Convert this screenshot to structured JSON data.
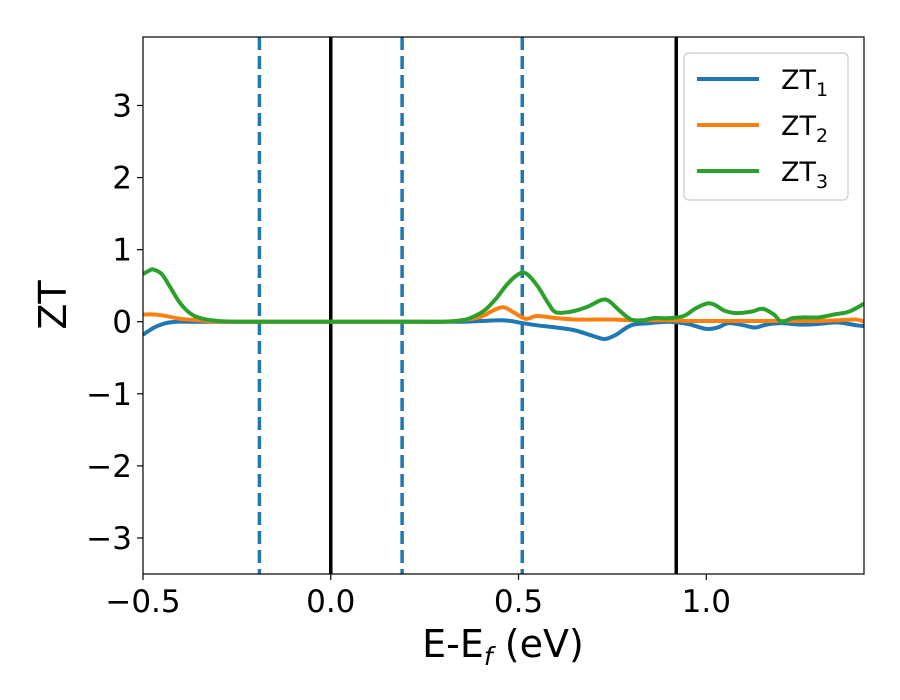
{
  "chart_data": {
    "type": "line",
    "xlabel": "E-E",
    "xlabel_sub": "f",
    "xlabel_unit": " (eV)",
    "ylabel": "ZT",
    "xlim": [
      -0.5,
      1.42
    ],
    "ylim": [
      -3.5,
      3.95
    ],
    "xticks": [
      -0.5,
      0.0,
      0.5,
      1.0
    ],
    "xtick_labels": [
      "−0.5",
      "0.0",
      "0.5",
      "1.0"
    ],
    "yticks": [
      -3,
      -2,
      -1,
      0,
      1,
      2,
      3
    ],
    "ytick_labels": [
      "−3",
      "−2",
      "−1",
      "0",
      "1",
      "2",
      "3"
    ],
    "grid": false,
    "legend_position": "top-right",
    "vlines_solid": [
      0.0,
      0.92
    ],
    "vlines_dashed": [
      -0.19,
      0.19,
      0.51
    ],
    "vline_solid_color": "#000000",
    "vline_dashed_color": "#1f77b4",
    "series": [
      {
        "name": "ZT",
        "sub": "1",
        "color": "#1f77b4",
        "x": [
          -0.5,
          -0.47,
          -0.44,
          -0.41,
          -0.38,
          -0.3,
          -0.2,
          0.0,
          0.2,
          0.35,
          0.4,
          0.45,
          0.48,
          0.5,
          0.55,
          0.6,
          0.65,
          0.7,
          0.73,
          0.76,
          0.8,
          0.85,
          0.9,
          0.95,
          1.0,
          1.03,
          1.06,
          1.1,
          1.13,
          1.16,
          1.2,
          1.25,
          1.3,
          1.35,
          1.4,
          1.42
        ],
        "y": [
          -0.18,
          -0.08,
          -0.02,
          0.0,
          0.0,
          0.0,
          0.0,
          0.0,
          0.0,
          0.0,
          0.01,
          0.02,
          0.01,
          -0.01,
          -0.05,
          -0.08,
          -0.12,
          -0.2,
          -0.24,
          -0.18,
          -0.05,
          -0.02,
          0.0,
          -0.03,
          -0.1,
          -0.08,
          -0.02,
          -0.05,
          -0.08,
          -0.04,
          -0.02,
          -0.04,
          -0.03,
          -0.01,
          -0.05,
          -0.06
        ]
      },
      {
        "name": "ZT",
        "sub": "2",
        "color": "#ff7f0e",
        "x": [
          -0.5,
          -0.47,
          -0.44,
          -0.4,
          -0.35,
          -0.3,
          -0.2,
          0.0,
          0.2,
          0.3,
          0.35,
          0.4,
          0.43,
          0.46,
          0.49,
          0.52,
          0.55,
          0.6,
          0.65,
          0.7,
          0.75,
          0.8,
          0.85,
          0.9,
          0.95,
          1.0,
          1.1,
          1.2,
          1.3,
          1.35,
          1.4,
          1.42
        ],
        "y": [
          0.1,
          0.1,
          0.08,
          0.04,
          0.02,
          0.0,
          0.0,
          0.0,
          0.0,
          0.0,
          0.02,
          0.07,
          0.15,
          0.2,
          0.12,
          0.04,
          0.08,
          0.05,
          0.03,
          0.03,
          0.03,
          0.02,
          0.02,
          0.02,
          0.01,
          0.01,
          0.01,
          0.01,
          0.01,
          0.02,
          0.03,
          0.0
        ]
      },
      {
        "name": "ZT",
        "sub": "3",
        "color": "#2ca02c",
        "x": [
          -0.5,
          -0.48,
          -0.47,
          -0.45,
          -0.43,
          -0.4,
          -0.37,
          -0.34,
          -0.3,
          -0.25,
          -0.2,
          0.0,
          0.2,
          0.3,
          0.35,
          0.38,
          0.41,
          0.44,
          0.47,
          0.5,
          0.52,
          0.55,
          0.58,
          0.6,
          0.64,
          0.68,
          0.72,
          0.74,
          0.77,
          0.8,
          0.83,
          0.86,
          0.9,
          0.94,
          0.97,
          1.0,
          1.02,
          1.05,
          1.08,
          1.12,
          1.15,
          1.18,
          1.2,
          1.23,
          1.26,
          1.3,
          1.34,
          1.38,
          1.42
        ],
        "y": [
          0.66,
          0.72,
          0.72,
          0.66,
          0.5,
          0.25,
          0.1,
          0.04,
          0.01,
          0.0,
          0.0,
          0.0,
          0.0,
          0.0,
          0.02,
          0.07,
          0.16,
          0.32,
          0.52,
          0.66,
          0.67,
          0.5,
          0.25,
          0.13,
          0.14,
          0.2,
          0.3,
          0.29,
          0.15,
          0.03,
          0.02,
          0.05,
          0.05,
          0.08,
          0.18,
          0.25,
          0.24,
          0.15,
          0.12,
          0.14,
          0.18,
          0.1,
          0.0,
          0.05,
          0.06,
          0.06,
          0.1,
          0.14,
          0.25
        ]
      }
    ]
  }
}
